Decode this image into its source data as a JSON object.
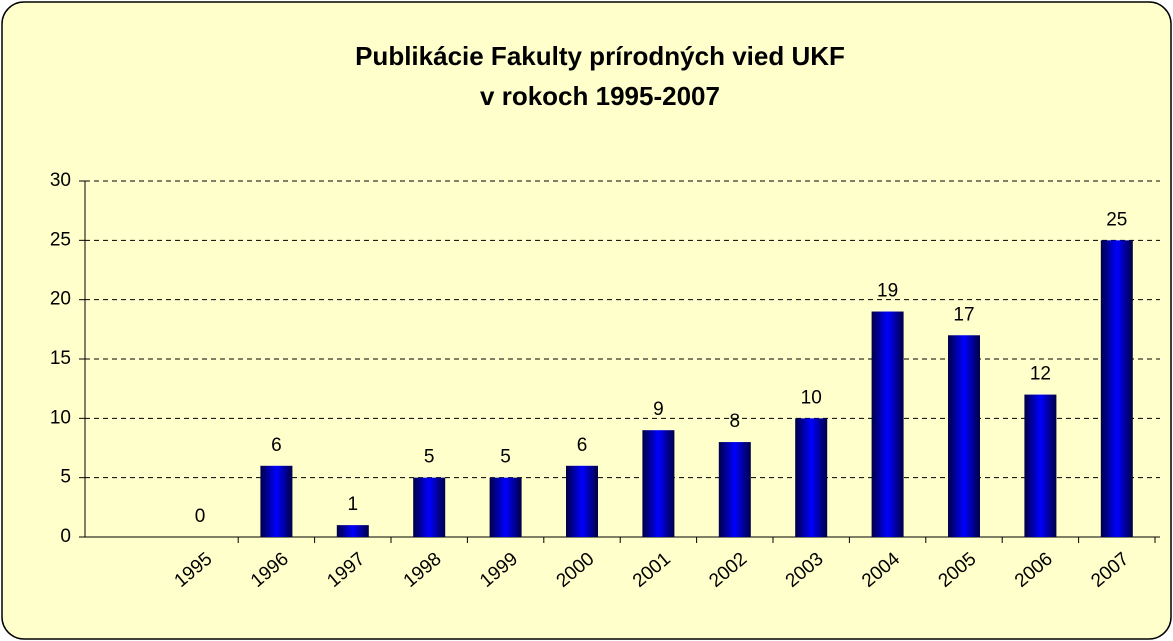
{
  "chart_data": {
    "type": "bar",
    "title": [
      "Publikácie Fakulty prírodných vied UKF",
      "v rokoch 1995-2007"
    ],
    "categories": [
      "1995",
      "1996",
      "1997",
      "1998",
      "1999",
      "2000",
      "2001",
      "2002",
      "2003",
      "2004",
      "2005",
      "2006",
      "2007"
    ],
    "values": [
      0,
      6,
      1,
      5,
      5,
      6,
      9,
      8,
      10,
      19,
      17,
      12,
      25
    ],
    "color": "#0000cc",
    "ylim": [
      0,
      30
    ],
    "yticks": [
      0,
      5,
      10,
      15,
      20,
      25,
      30
    ],
    "grid": true
  }
}
